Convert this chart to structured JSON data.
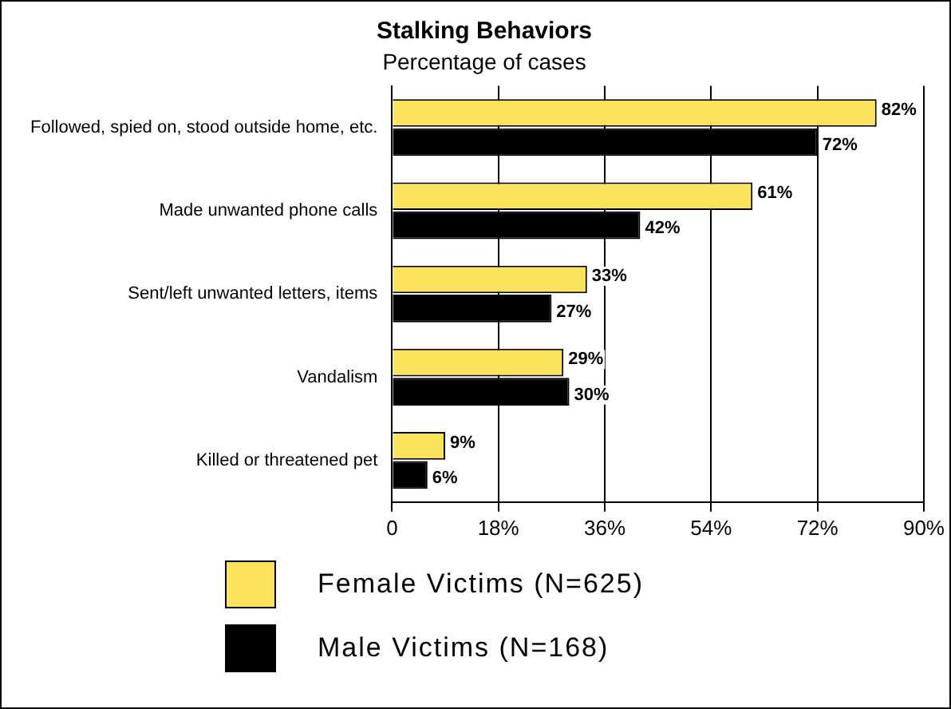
{
  "chart_data": {
    "type": "bar",
    "orientation": "horizontal",
    "title": "Stalking Behaviors",
    "subtitle": "Percentage of cases",
    "categories": [
      "Followed, spied on, stood outside home, etc.",
      "Made unwanted phone calls",
      "Sent/left unwanted letters, items",
      "Vandalism",
      "Killed or threatened pet"
    ],
    "series": [
      {
        "name": "Female Victims (N=625)",
        "color": "#fce35c",
        "values": [
          82,
          61,
          33,
          29,
          9
        ],
        "value_labels": [
          "82%",
          "61%",
          "33%",
          "29%",
          "9%"
        ]
      },
      {
        "name": "Male Victims (N=168)",
        "color": "#000000",
        "values": [
          72,
          42,
          27,
          30,
          6
        ],
        "value_labels": [
          "72%",
          "42%",
          "27%",
          "30%",
          "6%"
        ]
      }
    ],
    "xlim": [
      0,
      90
    ],
    "xticks": [
      0,
      {
        "value": 18,
        "label": "18%"
      },
      {
        "value": 36,
        "label": "36%"
      },
      {
        "value": 54,
        "label": "54%"
      },
      {
        "value": 72,
        "label": "72%"
      },
      {
        "value": 90,
        "label": "90%"
      }
    ],
    "grid": "x",
    "legend": "bottom"
  }
}
